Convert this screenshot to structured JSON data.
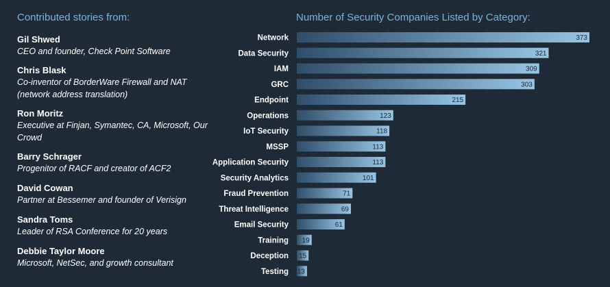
{
  "contributors": {
    "heading": "Contributed stories from:",
    "people": [
      {
        "name": "Gil Shwed",
        "role": "CEO and founder, Check Point Software"
      },
      {
        "name": "Chris Blask",
        "role": "Co-inventor of BorderWare Firewall and NAT (network address translation)"
      },
      {
        "name": "Ron Moritz",
        "role": "Executive at Finjan, Symantec, CA, Microsoft, Our Crowd"
      },
      {
        "name": "Barry Schrager",
        "role": "Progenitor of RACF and creator of ACF2"
      },
      {
        "name": "David Cowan",
        "role": "Partner at Bessemer and founder of Verisign"
      },
      {
        "name": "Sandra Toms",
        "role": "Leader of RSA Conference for 20 years"
      },
      {
        "name": "Debbie Taylor Moore",
        "role": "Microsoft, NetSec, and growth consultant"
      }
    ]
  },
  "chart_data": {
    "type": "bar",
    "orientation": "horizontal",
    "title": "Number of Security Companies Listed by Category:",
    "categories": [
      "Network",
      "Data Security",
      "IAM",
      "GRC",
      "Endpoint",
      "Operations",
      "IoT Security",
      "MSSP",
      "Application Security",
      "Security Analytics",
      "Fraud Prevention",
      "Threat Intelligence",
      "Email Security",
      "Training",
      "Deception",
      "Testing"
    ],
    "values": [
      373,
      321,
      309,
      303,
      215,
      123,
      118,
      113,
      113,
      101,
      71,
      69,
      61,
      19,
      15,
      13
    ],
    "xlim": [
      0,
      373
    ],
    "grid": false,
    "data_labels": true,
    "colors": {
      "bar_start": "#2f4e6a",
      "bar_end": "#97c5e4",
      "value_text": "#1b2733"
    }
  }
}
